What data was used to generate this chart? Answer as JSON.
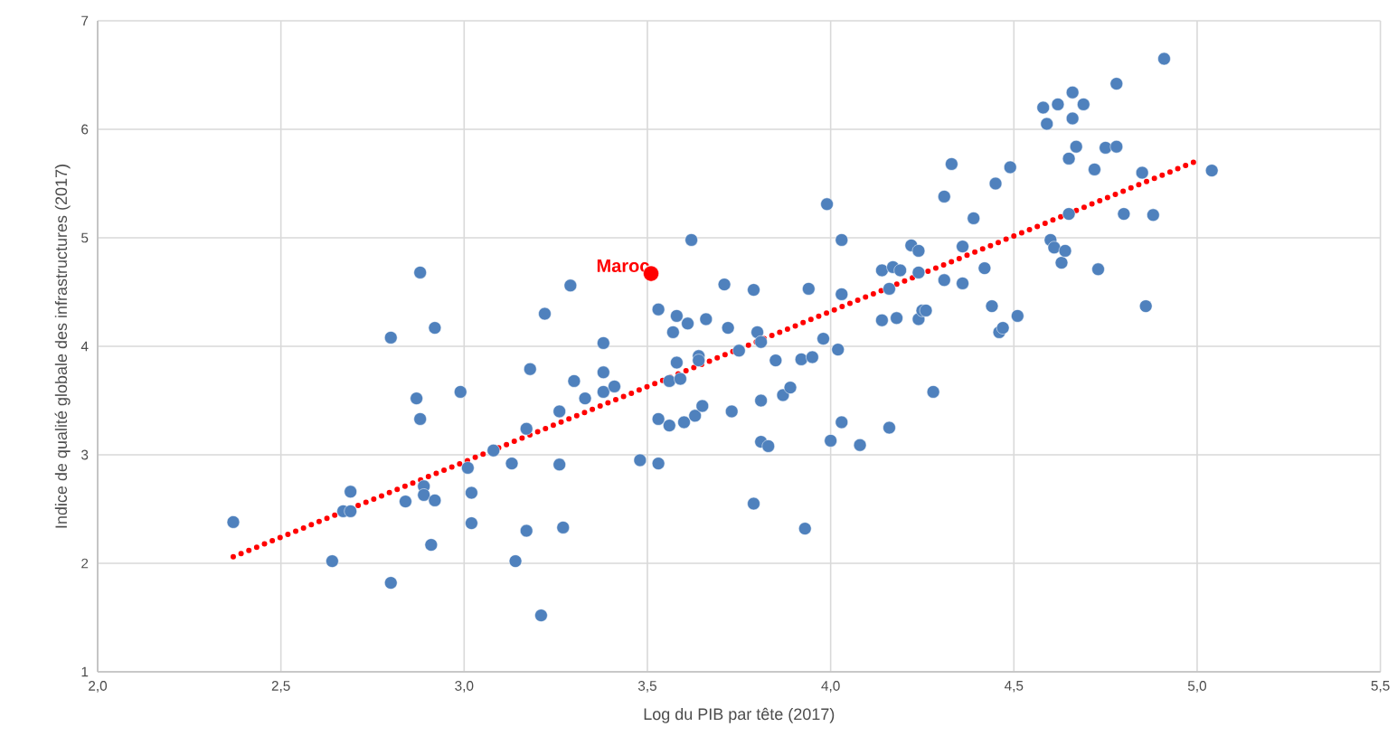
{
  "chart_data": {
    "type": "scatter",
    "xlabel": "Log du PIB par tête (2017)",
    "ylabel": "Indice de qualité globale des infrastructures (2017)",
    "xlim": [
      2.0,
      5.5
    ],
    "ylim": [
      1,
      7
    ],
    "xticks": [
      {
        "value": 2.0,
        "label": "2,0"
      },
      {
        "value": 2.5,
        "label": "2,5"
      },
      {
        "value": 3.0,
        "label": "3,0"
      },
      {
        "value": 3.5,
        "label": "3,5"
      },
      {
        "value": 4.0,
        "label": "4,0"
      },
      {
        "value": 4.5,
        "label": "4,5"
      },
      {
        "value": 5.0,
        "label": "5,0"
      },
      {
        "value": 5.5,
        "label": "5,5"
      }
    ],
    "yticks": [
      1,
      2,
      3,
      4,
      5,
      6,
      7
    ],
    "grid": true,
    "marker": "circle",
    "annotations": [
      {
        "text": "Maroc",
        "x": 3.51,
        "y": 4.67
      }
    ],
    "series": [
      {
        "color": "#4f81bd",
        "x": [
          2.37,
          2.64,
          2.67,
          2.69,
          2.69,
          2.8,
          2.8,
          2.84,
          2.87,
          2.88,
          2.88,
          2.89,
          2.89,
          2.92,
          2.92,
          2.91,
          2.99,
          3.01,
          3.02,
          3.02,
          3.08,
          3.13,
          3.14,
          3.17,
          3.17,
          3.18,
          3.21,
          3.22,
          3.26,
          3.26,
          3.27,
          3.29,
          3.3,
          3.33,
          3.38,
          3.38,
          3.38,
          3.41,
          3.48,
          3.53,
          3.53,
          3.53,
          3.56,
          3.56,
          3.57,
          3.58,
          3.58,
          3.59,
          3.6,
          3.61,
          3.62,
          3.63,
          3.64,
          3.64,
          3.66,
          3.65,
          3.71,
          3.72,
          3.73,
          3.75,
          3.79,
          3.79,
          3.8,
          3.81,
          3.81,
          3.81,
          3.83,
          3.85,
          3.87,
          3.89,
          3.92,
          3.93,
          3.94,
          3.95,
          3.98,
          3.99,
          4.0,
          4.02,
          4.03,
          4.03,
          4.03,
          4.08,
          4.14,
          4.14,
          4.16,
          4.16,
          4.17,
          4.18,
          4.19,
          4.22,
          4.24,
          4.24,
          4.24,
          4.25,
          4.26,
          4.28,
          4.31,
          4.31,
          4.33,
          4.36,
          4.36,
          4.39,
          4.42,
          4.45,
          4.44,
          4.46,
          4.47,
          4.49,
          4.51,
          4.58,
          4.59,
          4.6,
          4.61,
          4.62,
          4.63,
          4.64,
          4.65,
          4.65,
          4.66,
          4.66,
          4.67,
          4.69,
          4.72,
          4.73,
          4.75,
          4.78,
          4.78,
          4.8,
          4.85,
          4.86,
          4.88,
          4.91,
          5.04
        ],
        "values": [
          2.38,
          2.02,
          2.48,
          2.48,
          2.66,
          4.08,
          1.82,
          2.57,
          3.52,
          4.68,
          3.33,
          2.71,
          2.63,
          4.17,
          2.58,
          2.17,
          3.58,
          2.88,
          2.37,
          2.65,
          3.04,
          2.92,
          2.02,
          3.24,
          2.3,
          3.79,
          1.52,
          4.3,
          2.91,
          3.4,
          2.33,
          4.56,
          3.68,
          3.52,
          4.03,
          3.58,
          3.76,
          3.63,
          2.95,
          4.34,
          3.33,
          2.92,
          3.68,
          3.27,
          4.13,
          4.28,
          3.85,
          3.7,
          3.3,
          4.21,
          4.98,
          3.36,
          3.91,
          3.87,
          4.25,
          3.45,
          4.57,
          4.17,
          3.4,
          3.96,
          2.55,
          4.52,
          4.13,
          3.5,
          4.04,
          3.12,
          3.08,
          3.87,
          3.55,
          3.62,
          3.88,
          2.32,
          4.53,
          3.9,
          4.07,
          5.31,
          3.13,
          3.97,
          4.98,
          3.3,
          4.48,
          3.09,
          4.7,
          4.24,
          3.25,
          4.53,
          4.73,
          4.26,
          4.7,
          4.93,
          4.88,
          4.68,
          4.25,
          4.33,
          4.33,
          3.58,
          5.38,
          4.61,
          5.68,
          4.92,
          4.58,
          5.18,
          4.72,
          5.5,
          4.37,
          4.13,
          4.17,
          5.65,
          4.28,
          6.2,
          6.05,
          4.98,
          4.91,
          6.23,
          4.77,
          4.88,
          5.73,
          5.22,
          6.34,
          6.1,
          5.84,
          6.23,
          5.63,
          4.71,
          5.83,
          5.84,
          6.42,
          5.22,
          5.6,
          4.37,
          5.21,
          6.65,
          5.62
        ]
      },
      {
        "color": "#ff0000",
        "x": [
          3.51
        ],
        "values": [
          4.67
        ]
      },
      {
        "type": "line",
        "color": "#ff0000",
        "line_style": "dotted",
        "marker": "none",
        "x": [
          2.37,
          5.0
        ],
        "values": [
          2.06,
          5.71
        ]
      }
    ]
  }
}
